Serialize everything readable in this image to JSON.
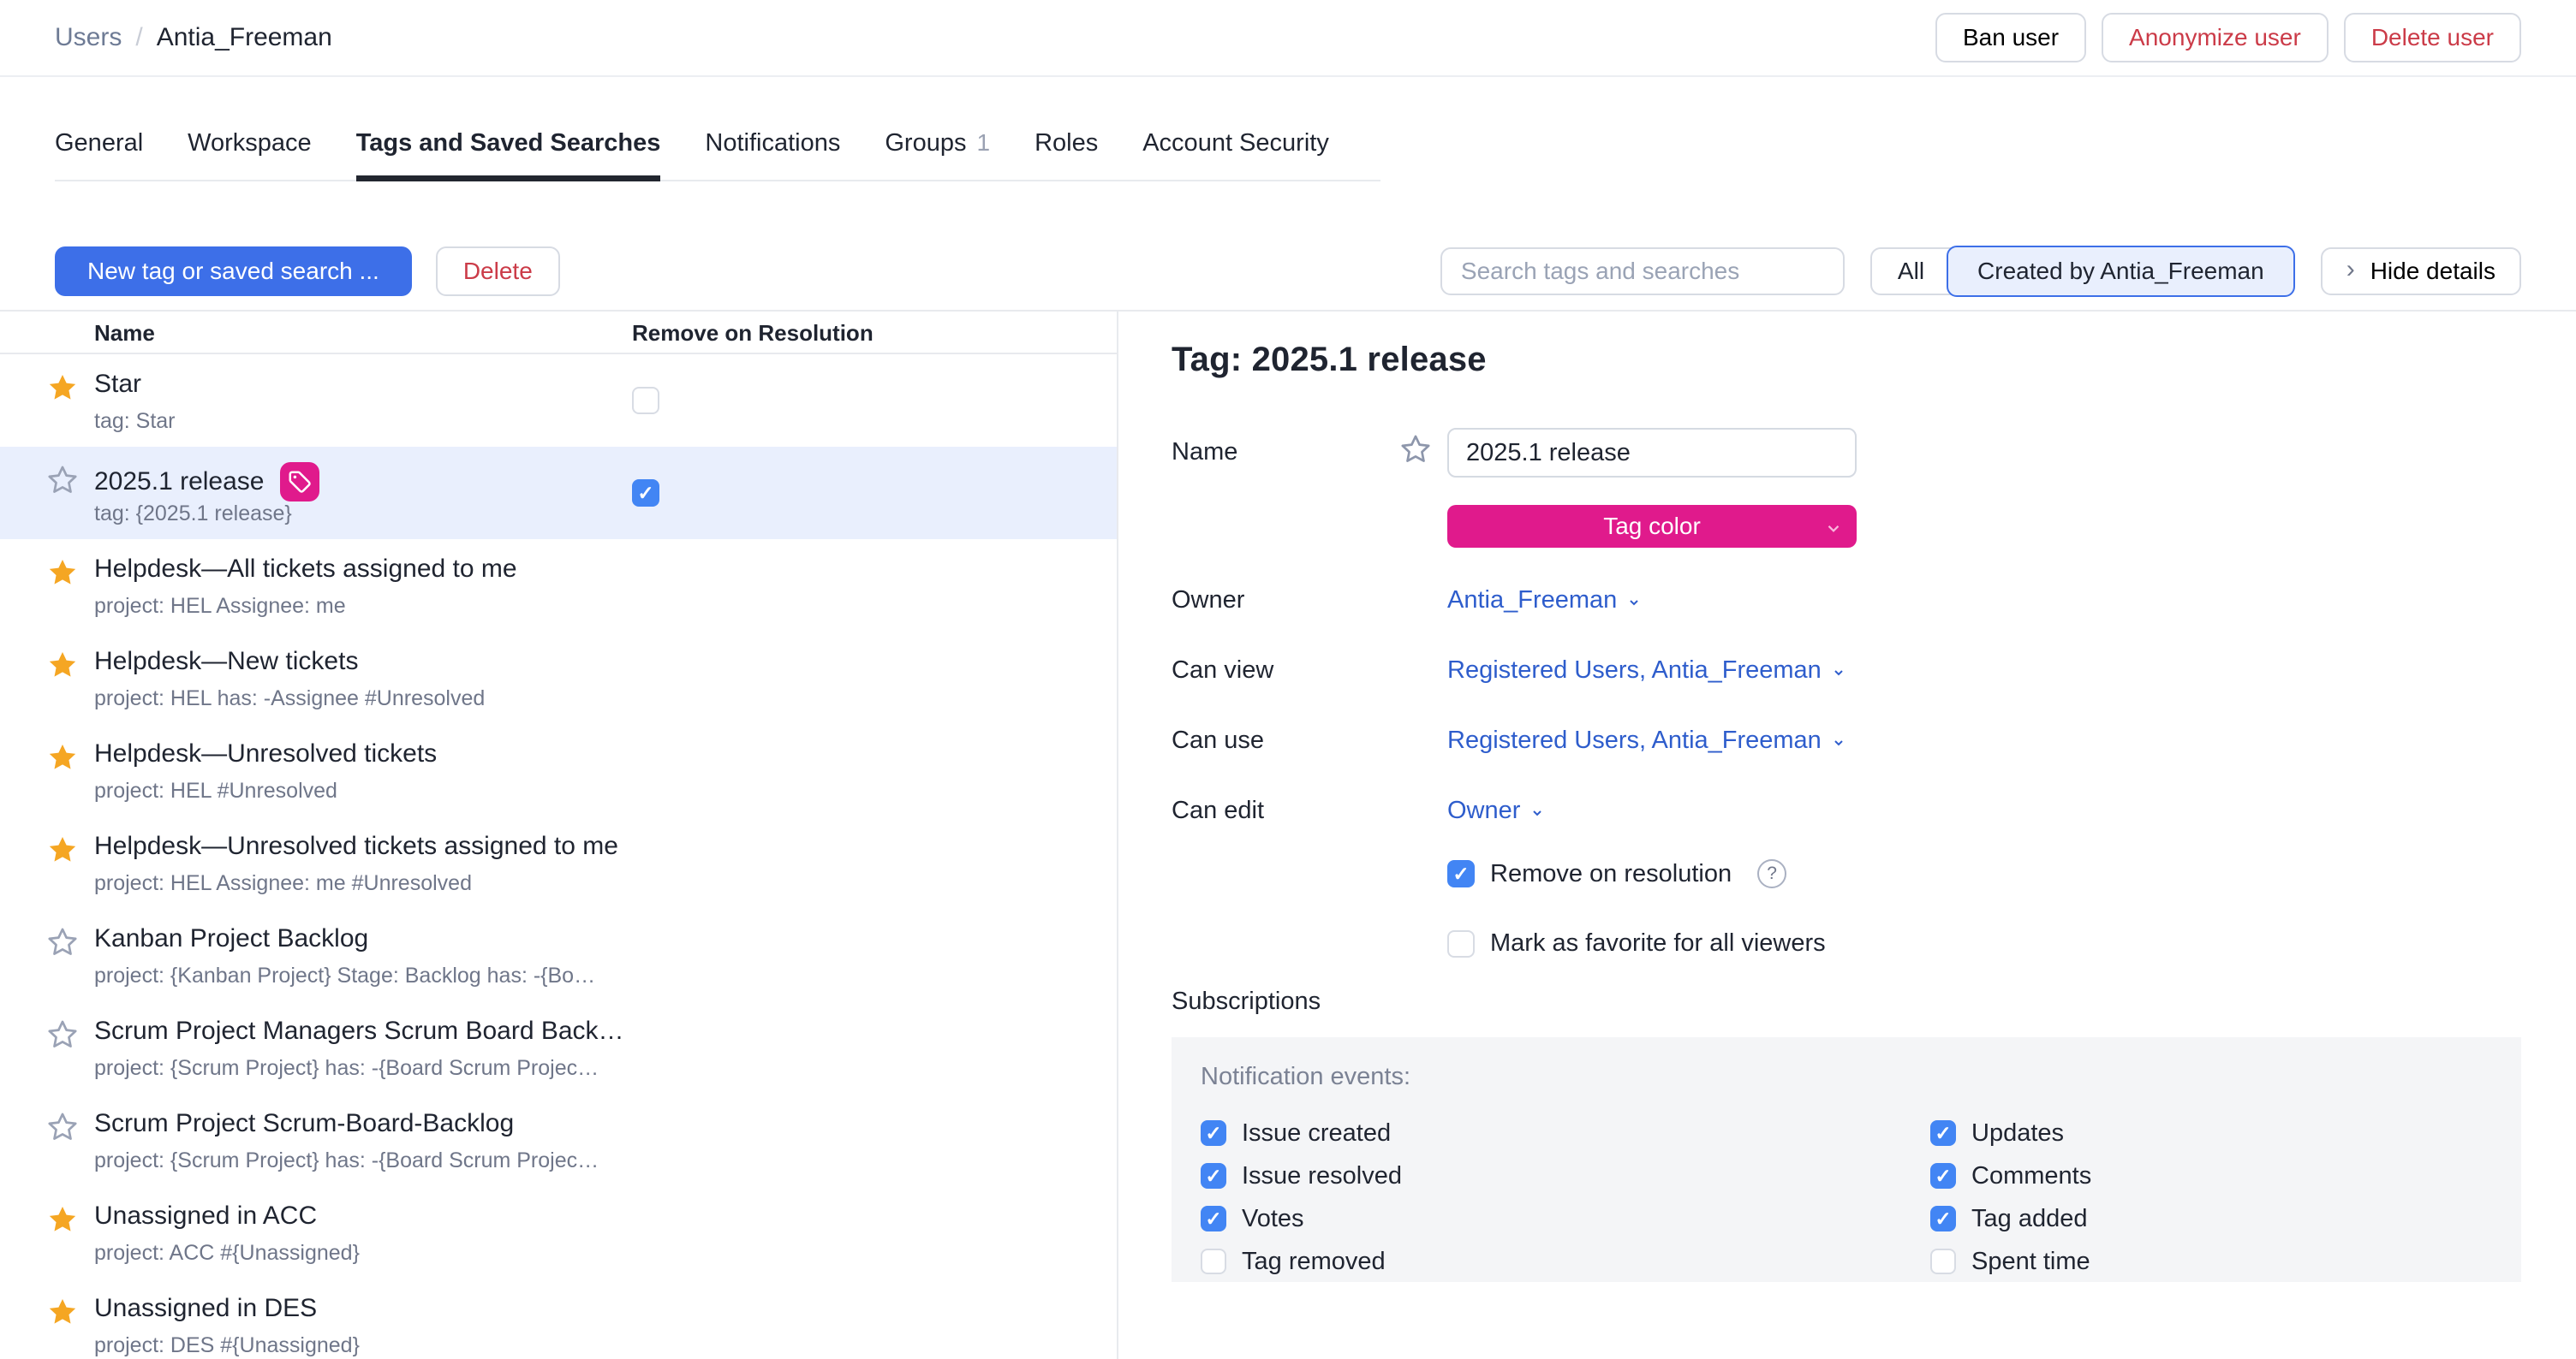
{
  "breadcrumb": {
    "parent": "Users",
    "separator": "/",
    "current": "Antia_Freeman"
  },
  "header_actions": {
    "ban": "Ban user",
    "anonymize": "Anonymize user",
    "delete": "Delete user"
  },
  "tabs": [
    {
      "label": "General",
      "active": false
    },
    {
      "label": "Workspace",
      "active": false
    },
    {
      "label": "Tags and Saved Searches",
      "active": true
    },
    {
      "label": "Notifications",
      "active": false
    },
    {
      "label": "Groups",
      "count": "1",
      "active": false
    },
    {
      "label": "Roles",
      "active": false
    },
    {
      "label": "Account Security",
      "active": false
    }
  ],
  "toolbar": {
    "new_button": "New tag or saved search ...",
    "delete_button": "Delete",
    "search_placeholder": "Search tags and searches",
    "filter_all": "All",
    "filter_created": "Created by Antia_Freeman",
    "hide_details": "Hide details",
    "hide_details_chevron": "›"
  },
  "list": {
    "columns": [
      "Name",
      "Remove on Resolution"
    ],
    "rows": [
      {
        "starred": true,
        "title": "Star",
        "subtitle": "tag: Star",
        "tag_badge": false,
        "checkbox": false,
        "selected": false
      },
      {
        "starred": false,
        "title": "2025.1 release",
        "subtitle": "tag: {2025.1 release}",
        "tag_badge": true,
        "checkbox": true,
        "selected": true
      },
      {
        "starred": true,
        "title": "Helpdesk—All tickets assigned to me",
        "subtitle": "project: HEL Assignee: me",
        "tag_badge": false,
        "checkbox": null,
        "selected": false
      },
      {
        "starred": true,
        "title": "Helpdesk—New tickets",
        "subtitle": "project: HEL has: -Assignee #Unresolved",
        "tag_badge": false,
        "checkbox": null,
        "selected": false
      },
      {
        "starred": true,
        "title": "Helpdesk—Unresolved tickets",
        "subtitle": "project: HEL #Unresolved",
        "tag_badge": false,
        "checkbox": null,
        "selected": false
      },
      {
        "starred": true,
        "title": "Helpdesk—Unresolved tickets assigned to me",
        "subtitle": "project: HEL Assignee: me #Unresolved",
        "tag_badge": false,
        "checkbox": null,
        "selected": false
      },
      {
        "starred": false,
        "title": "Kanban Project Backlog",
        "subtitle": "project: {Kanban Project} Stage: Backlog has: -{Bo…",
        "tag_badge": false,
        "checkbox": null,
        "selected": false
      },
      {
        "starred": false,
        "title": "Scrum Project Managers Scrum Board Back…",
        "subtitle": "project: {Scrum Project} has: -{Board Scrum Projec…",
        "tag_badge": false,
        "checkbox": null,
        "selected": false
      },
      {
        "starred": false,
        "title": "Scrum Project Scrum-Board-Backlog",
        "subtitle": "project: {Scrum Project} has: -{Board Scrum Projec…",
        "tag_badge": false,
        "checkbox": null,
        "selected": false
      },
      {
        "starred": true,
        "title": "Unassigned in ACC",
        "subtitle": "project: ACC #{Unassigned}",
        "tag_badge": false,
        "checkbox": null,
        "selected": false
      },
      {
        "starred": true,
        "title": "Unassigned in DES",
        "subtitle": "project: DES #{Unassigned}",
        "tag_badge": false,
        "checkbox": null,
        "selected": false
      }
    ]
  },
  "details": {
    "title": "Tag: 2025.1 release",
    "name_label": "Name",
    "name_value": "2025.1 release",
    "tag_color_label": "Tag color",
    "fields": [
      {
        "label": "Owner",
        "value": "Antia_Freeman"
      },
      {
        "label": "Can view",
        "value": "Registered Users, Antia_Freeman"
      },
      {
        "label": "Can use",
        "value": "Registered Users, Antia_Freeman"
      },
      {
        "label": "Can edit",
        "value": "Owner"
      }
    ],
    "remove_on_resolution": {
      "label": "Remove on resolution",
      "checked": true
    },
    "mark_favorite": {
      "label": "Mark as favorite for all viewers",
      "checked": false
    },
    "help_glyph": "?",
    "subscriptions_label": "Subscriptions",
    "notification_events_label": "Notification events:",
    "notification_events": {
      "left": [
        {
          "label": "Issue created",
          "checked": true
        },
        {
          "label": "Issue resolved",
          "checked": true
        },
        {
          "label": "Votes",
          "checked": true
        },
        {
          "label": "Tag removed",
          "checked": false
        }
      ],
      "right": [
        {
          "label": "Updates",
          "checked": true
        },
        {
          "label": "Comments",
          "checked": true
        },
        {
          "label": "Tag added",
          "checked": true
        },
        {
          "label": "Spent time",
          "checked": false
        }
      ]
    }
  },
  "colors": {
    "primary_blue": "#3d6fe8",
    "checkbox_blue": "#4285f4",
    "link_blue": "#2e5dcc",
    "danger_red": "#cb3b48",
    "tag_pink": "#e01a8c",
    "star_yellow": "#f5a623",
    "selected_row_bg": "#e9effd",
    "panel_bg": "#f4f5f7",
    "divider": "#e8eaee",
    "control_border": "#d7dbe3",
    "text_primary": "#1f2430",
    "text_secondary": "#6f7689"
  },
  "check_glyph": "✓"
}
